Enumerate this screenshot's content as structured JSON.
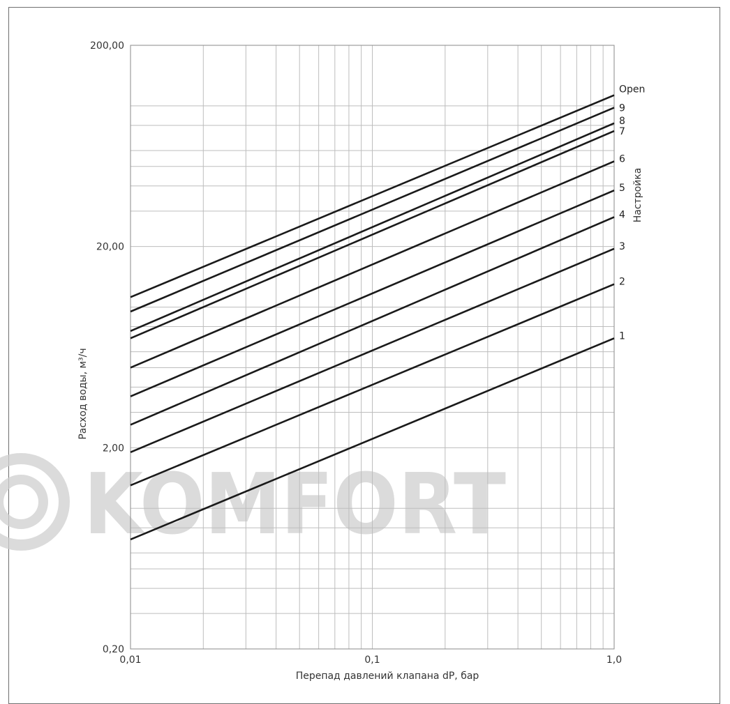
{
  "chart_data": {
    "type": "line",
    "xscale": "log",
    "yscale": "log",
    "xlim": [
      0.01,
      1.0
    ],
    "ylim": [
      0.2,
      200
    ],
    "grid": true,
    "xlabel": "Перепад давлений клапана dP, бар",
    "ylabel": "Расход воды, м³/ч",
    "legend_title": "Настройка",
    "x_ticks": [
      {
        "value": 0.01,
        "label": "0,01"
      },
      {
        "value": 0.1,
        "label": "0,1"
      },
      {
        "value": 1.0,
        "label": "1,0"
      }
    ],
    "y_ticks": [
      {
        "value": 0.2,
        "label": "0,20"
      },
      {
        "value": 2,
        "label": "2,00"
      },
      {
        "value": 20,
        "label": "20,00"
      },
      {
        "value": 200,
        "label": "200,00"
      }
    ],
    "x": [
      0.01,
      1.0
    ],
    "series": [
      {
        "name": "1",
        "values": [
          0.7,
          7.0
        ]
      },
      {
        "name": "2",
        "values": [
          1.3,
          13.0
        ]
      },
      {
        "name": "3",
        "values": [
          1.9,
          19.5
        ]
      },
      {
        "name": "4",
        "values": [
          2.6,
          28.0
        ]
      },
      {
        "name": "5",
        "values": [
          3.6,
          38.0
        ]
      },
      {
        "name": "6",
        "values": [
          5.0,
          53.0
        ]
      },
      {
        "name": "7",
        "values": [
          7.0,
          75.0
        ]
      },
      {
        "name": "8",
        "values": [
          7.6,
          82.0
        ]
      },
      {
        "name": "9",
        "values": [
          9.5,
          98.0
        ]
      },
      {
        "name": "Open",
        "values": [
          11.2,
          113.0
        ]
      }
    ]
  },
  "watermark": {
    "text": "KOMFORT",
    "icon": "circle-logo-icon",
    "color": "#cfcfcf"
  }
}
